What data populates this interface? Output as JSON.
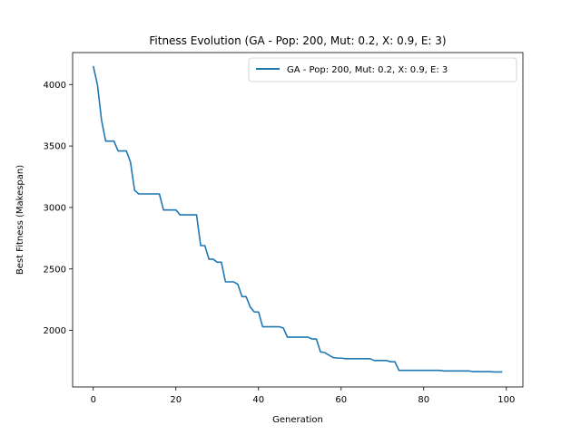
{
  "chart_data": {
    "type": "line",
    "title": "Fitness Evolution (GA - Pop: 200, Mut: 0.2, X: 0.9, E: 3)",
    "xlabel": "Generation",
    "ylabel": "Best Fitness (Makespan)",
    "xlim": [
      -5,
      104
    ],
    "ylim": [
      1540,
      4260
    ],
    "xticks": [
      0,
      20,
      40,
      60,
      80,
      100
    ],
    "yticks": [
      2000,
      2500,
      3000,
      3500,
      4000
    ],
    "grid": false,
    "legend_position": "top-right",
    "series": [
      {
        "name": "GA - Pop: 200, Mut: 0.2, X: 0.9, E: 3",
        "color": "#1f77b4",
        "x": [
          0,
          1,
          2,
          3,
          4,
          5,
          6,
          7,
          8,
          9,
          10,
          11,
          12,
          13,
          14,
          15,
          16,
          17,
          18,
          19,
          20,
          21,
          22,
          23,
          24,
          25,
          26,
          27,
          28,
          29,
          30,
          31,
          32,
          33,
          34,
          35,
          36,
          37,
          38,
          39,
          40,
          41,
          42,
          43,
          44,
          45,
          46,
          47,
          48,
          49,
          50,
          51,
          52,
          53,
          54,
          55,
          56,
          57,
          58,
          59,
          60,
          61,
          62,
          63,
          64,
          65,
          66,
          67,
          68,
          69,
          70,
          71,
          72,
          73,
          74,
          75,
          76,
          77,
          78,
          79,
          80,
          81,
          82,
          83,
          84,
          85,
          86,
          87,
          88,
          89,
          90,
          91,
          92,
          93,
          94,
          95,
          96,
          97,
          98,
          99
        ],
        "y": [
          4150,
          4000,
          3710,
          3540,
          3540,
          3540,
          3460,
          3460,
          3460,
          3370,
          3140,
          3110,
          3110,
          3110,
          3110,
          3110,
          3110,
          2980,
          2980,
          2980,
          2980,
          2940,
          2940,
          2940,
          2940,
          2940,
          2690,
          2690,
          2580,
          2580,
          2555,
          2555,
          2395,
          2395,
          2395,
          2375,
          2275,
          2275,
          2190,
          2150,
          2150,
          2030,
          2030,
          2030,
          2030,
          2030,
          2020,
          1945,
          1945,
          1945,
          1945,
          1945,
          1945,
          1930,
          1930,
          1825,
          1820,
          1800,
          1780,
          1775,
          1775,
          1770,
          1770,
          1770,
          1770,
          1770,
          1770,
          1770,
          1755,
          1755,
          1755,
          1755,
          1745,
          1745,
          1675,
          1675,
          1675,
          1675,
          1675,
          1675,
          1675,
          1675,
          1675,
          1675,
          1675,
          1670,
          1670,
          1670,
          1670,
          1670,
          1670,
          1670,
          1665,
          1665,
          1665,
          1665,
          1665,
          1662,
          1662,
          1662
        ]
      }
    ]
  }
}
